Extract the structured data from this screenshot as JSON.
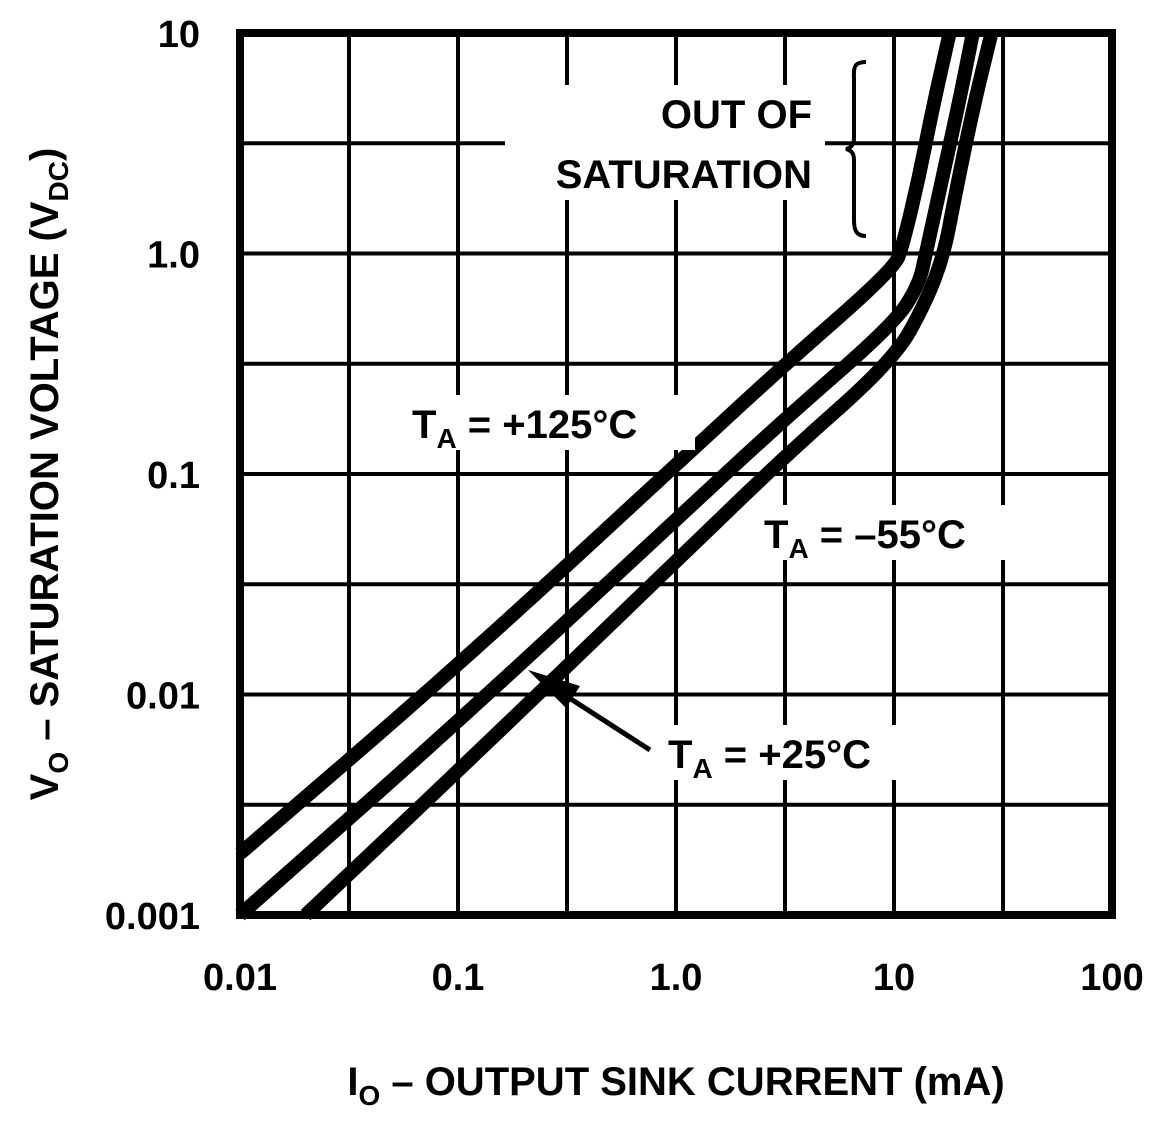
{
  "chart_data": {
    "type": "line",
    "title": "",
    "xlabel": "I",
    "xlabel_sub": "O",
    "xlabel_rest": " – OUTPUT SINK CURRENT (mA)",
    "ylabel": "V",
    "ylabel_sub": "O",
    "ylabel_rest": " – SATURATION VOLTAGE (V",
    "ylabel_sub2": "DC",
    "ylabel_end": ")",
    "x_scale": "log",
    "y_scale": "log",
    "xlim": [
      0.01,
      100
    ],
    "ylim": [
      0.001,
      10
    ],
    "grid": true,
    "x_ticks": [
      "0.01",
      "0.1",
      "1.0",
      "10",
      "100"
    ],
    "y_ticks": [
      "0.001",
      "0.01",
      "0.1",
      "1.0",
      "10"
    ],
    "series": [
      {
        "name": "TA = +125°C",
        "x": [
          0.01,
          0.1,
          1,
          3,
          10,
          11,
          13,
          15,
          18
        ],
        "y": [
          0.0019,
          0.0135,
          0.11,
          0.3,
          0.85,
          1.1,
          2.2,
          4.5,
          10
        ]
      },
      {
        "name": "TA = +25°C",
        "x": [
          0.01,
          0.1,
          1,
          3,
          10,
          13,
          14,
          17,
          20,
          23
        ],
        "y": [
          0.001,
          0.0075,
          0.062,
          0.17,
          0.48,
          0.72,
          1.0,
          2.4,
          5,
          10
        ]
      },
      {
        "name": "TA = −55°C",
        "x": [
          0.02,
          0.1,
          1,
          3,
          10,
          14,
          17,
          19,
          23,
          28
        ],
        "y": [
          0.001,
          0.0045,
          0.04,
          0.115,
          0.33,
          0.6,
          1.0,
          1.8,
          4.5,
          10
        ]
      }
    ],
    "annotations": {
      "out_of_saturation_1": "OUT OF",
      "out_of_saturation_2": "SATURATION",
      "t125": {
        "pre": "T",
        "sub": "A",
        "post": " = +125°C"
      },
      "t25": {
        "pre": "T",
        "sub": "A",
        "post": " = +25°C"
      },
      "tm55": {
        "pre": "T",
        "sub": "A",
        "post": " = –55°C"
      }
    }
  }
}
